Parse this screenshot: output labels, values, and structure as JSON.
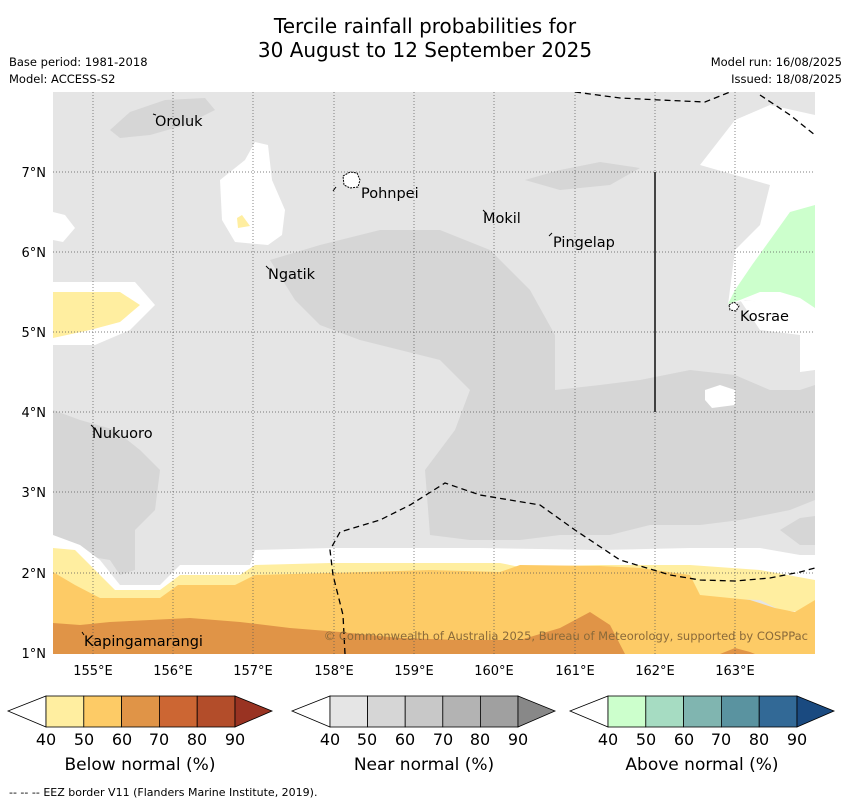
{
  "header": {
    "title_line1": "Tercile rainfall probabilities for",
    "title_line2": "30 August to 12 September 2025",
    "base_period": "Base period: 1981-2018",
    "model": "Model: ACCESS-S2",
    "model_run": "Model run: 16/08/2025",
    "issued": "Issued: 18/08/2025"
  },
  "map": {
    "x_ticks": [
      "155°E",
      "156°E",
      "157°E",
      "158°E",
      "159°E",
      "160°E",
      "161°E",
      "162°E",
      "163°E"
    ],
    "y_ticks": [
      "7°N",
      "6°N",
      "5°N",
      "4°N",
      "3°N",
      "2°N",
      "1°N"
    ],
    "places": {
      "oroluk": "Oroluk",
      "pohnpei": "Pohnpei",
      "mokil": "Mokil",
      "pingelap": "Pingelap",
      "ngatik": "Ngatik",
      "kosrae": "Kosrae",
      "nukuoro": "Nukuoro",
      "kapingamarangi": "Kapingamarangi"
    },
    "copyright": "© Commonwealth of Australia 2025, Bureau of Meteorology, supported by COSPPac",
    "colors": {
      "near_40": "#e5e5e5",
      "near_50": "#d6d6d6",
      "below_40": "#ffeea0",
      "below_50": "#fdcb66",
      "below_60": "#e09447",
      "above_40": "#ccffcc"
    }
  },
  "colorbars": [
    {
      "title": "Below normal (%)",
      "ticks": [
        "40",
        "50",
        "60",
        "70",
        "80",
        "90"
      ],
      "colors": [
        "#ffeea0",
        "#fdcb66",
        "#e09447",
        "#cc6633",
        "#b34d2a",
        "#993322"
      ]
    },
    {
      "title": "Near normal (%)",
      "ticks": [
        "40",
        "50",
        "60",
        "70",
        "80",
        "90"
      ],
      "colors": [
        "#e5e5e5",
        "#d6d6d6",
        "#c8c8c8",
        "#b3b3b3",
        "#a0a0a0",
        "#888888"
      ]
    },
    {
      "title": "Above normal (%)",
      "ticks": [
        "40",
        "50",
        "60",
        "70",
        "80",
        "90"
      ],
      "colors": [
        "#ccffcc",
        "#a6dcc2",
        "#80b5b0",
        "#5a93a0",
        "#326996",
        "#1a4a80"
      ]
    }
  ],
  "footer": {
    "legend_symbol": "-- -- --",
    "legend_text": "EEZ border V11 (Flanders Marine Institute, 2019)."
  }
}
